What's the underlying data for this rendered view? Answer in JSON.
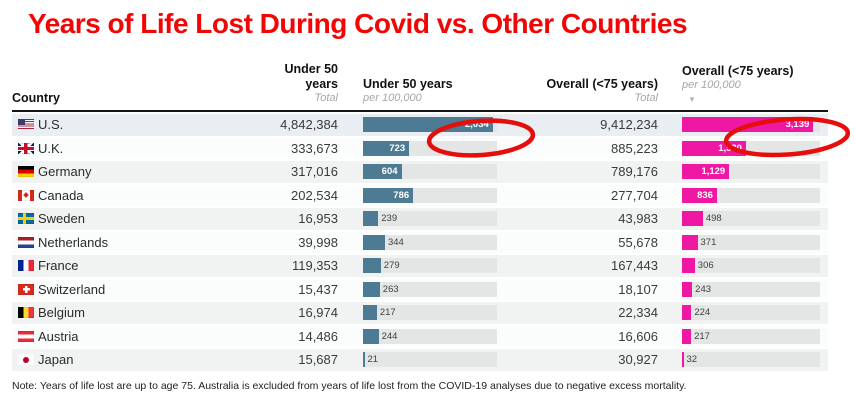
{
  "title": "Years of Life Lost During Covid vs. Other Countries",
  "note": "Note: Years of life lost are up to age 75. Australia is excluded from years of life lost from the COVID-19 analyses due to negative excess mortality.",
  "colors": {
    "title_red": "#f20505",
    "annotation_red": "#e60d0d",
    "under50_bar": "#4d7b93",
    "overall_bar": "#ee18a2",
    "bar_track": "#e4e5e5",
    "bottom_rule": "#5b7b95"
  },
  "header": {
    "country": {
      "label": "Country"
    },
    "under50_total": {
      "label": "Under 50 years",
      "sub": "Total"
    },
    "under50_rate": {
      "label": "Under 50 years",
      "sub": "per 100,000"
    },
    "overall_total": {
      "label": "Overall (<75 years)",
      "sub": "Total"
    },
    "overall_rate": {
      "label": "Overall (<75 years)",
      "sub": "per 100,000",
      "sort_indicator": "▼"
    }
  },
  "annotations": {
    "description": "hand-drawn red ellipses circling the U.S. per-100,000 values",
    "circled_values": [
      "2,034",
      "3,139"
    ]
  },
  "chart_data": {
    "type": "table",
    "title": "Years of Life Lost During Covid vs. Other Countries",
    "sort": "descending by Overall (<75 years) per 100,000",
    "columns": [
      "Country",
      "Under 50 years — Total",
      "Under 50 years — per 100,000",
      "Overall (<75 years) — Total",
      "Overall (<75 years) — per 100,000"
    ],
    "axes": {
      "under50_rate_max": 2100,
      "overall_rate_max": 3300
    },
    "rows": [
      {
        "flag": "us",
        "country": "U.S.",
        "under50_total": "4,842,384",
        "under50_rate": 2034,
        "under50_rate_label": "2,034",
        "overall_total": "9,412,234",
        "overall_rate": 3139,
        "overall_rate_label": "3,139"
      },
      {
        "flag": "uk",
        "country": "U.K.",
        "under50_total": "333,673",
        "under50_rate": 723,
        "under50_rate_label": "723",
        "overall_total": "885,223",
        "overall_rate": 1530,
        "overall_rate_label": "1,530"
      },
      {
        "flag": "de",
        "country": "Germany",
        "under50_total": "317,016",
        "under50_rate": 604,
        "under50_rate_label": "604",
        "overall_total": "789,176",
        "overall_rate": 1129,
        "overall_rate_label": "1,129"
      },
      {
        "flag": "ca",
        "country": "Canada",
        "under50_total": "202,534",
        "under50_rate": 786,
        "under50_rate_label": "786",
        "overall_total": "277,704",
        "overall_rate": 836,
        "overall_rate_label": "836"
      },
      {
        "flag": "se",
        "country": "Sweden",
        "under50_total": "16,953",
        "under50_rate": 239,
        "under50_rate_label": "239",
        "overall_total": "43,983",
        "overall_rate": 498,
        "overall_rate_label": "498"
      },
      {
        "flag": "nl",
        "country": "Netherlands",
        "under50_total": "39,998",
        "under50_rate": 344,
        "under50_rate_label": "344",
        "overall_total": "55,678",
        "overall_rate": 371,
        "overall_rate_label": "371"
      },
      {
        "flag": "fr",
        "country": "France",
        "under50_total": "119,353",
        "under50_rate": 279,
        "under50_rate_label": "279",
        "overall_total": "167,443",
        "overall_rate": 306,
        "overall_rate_label": "306"
      },
      {
        "flag": "ch",
        "country": "Switzerland",
        "under50_total": "15,437",
        "under50_rate": 263,
        "under50_rate_label": "263",
        "overall_total": "18,107",
        "overall_rate": 243,
        "overall_rate_label": "243"
      },
      {
        "flag": "be",
        "country": "Belgium",
        "under50_total": "16,974",
        "under50_rate": 217,
        "under50_rate_label": "217",
        "overall_total": "22,334",
        "overall_rate": 224,
        "overall_rate_label": "224"
      },
      {
        "flag": "at",
        "country": "Austria",
        "under50_total": "14,486",
        "under50_rate": 244,
        "under50_rate_label": "244",
        "overall_total": "16,606",
        "overall_rate": 217,
        "overall_rate_label": "217"
      },
      {
        "flag": "jp",
        "country": "Japan",
        "under50_total": "15,687",
        "under50_rate": 21,
        "under50_rate_label": "21",
        "overall_total": "30,927",
        "overall_rate": 32,
        "overall_rate_label": "32"
      }
    ]
  }
}
